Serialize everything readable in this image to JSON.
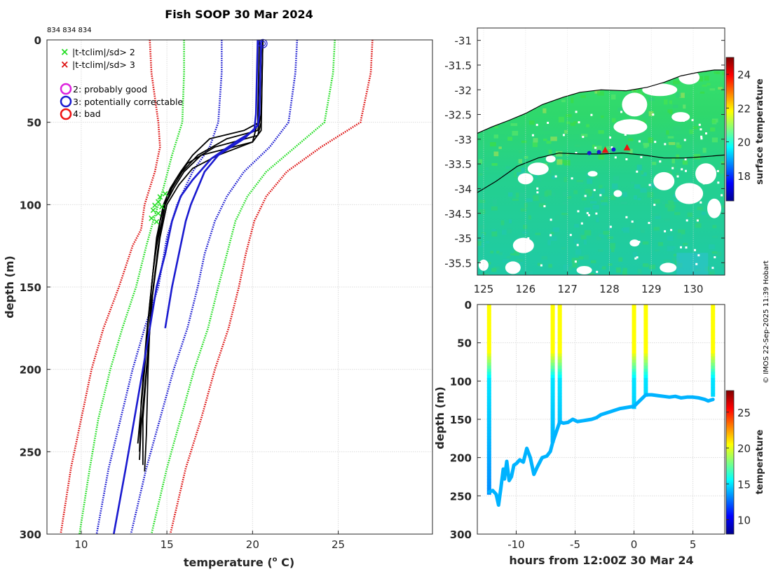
{
  "figure": {
    "id_label": "834 834 834",
    "credit": "© IMOS 22-Sep-2025 11:39 Hobart"
  },
  "colors": {
    "clim_sd2": "#22dd22",
    "clim_sd3": "#dd1111",
    "clim_sd1": "#1a1ad0",
    "profile": "#000000",
    "blue_profile": "#1a1ad0",
    "land": "#ffffff",
    "qc_probably_good": "#dd22dd",
    "qc_correctable": "#1a1ad0",
    "qc_bad": "#ee1111"
  },
  "chart_data": [
    {
      "type": "line",
      "name": "profile",
      "title": "Fish SOOP 30 Mar 2024",
      "xlabel": "temperature (o C)",
      "xlabel_parts": [
        "temperature (",
        "o",
        " C)"
      ],
      "ylabel": "depth (m)",
      "xlim": [
        8,
        30.5
      ],
      "ylim": [
        300,
        0
      ],
      "xticks": [
        10,
        15,
        20,
        25
      ],
      "yticks": [
        0,
        50,
        100,
        150,
        200,
        250,
        300
      ],
      "legend": {
        "markers": [
          {
            "symbol": "×",
            "label": "|t-tclim|/sd> 2",
            "color_key": "clim_sd2"
          },
          {
            "symbol": "×",
            "label": "|t-tclim|/sd> 3",
            "color_key": "clim_sd3"
          }
        ],
        "qc_flags": [
          {
            "label": "2: probably good",
            "color_key": "qc_probably_good"
          },
          {
            "label": "3: potentially correctable",
            "color_key": "qc_correctable"
          },
          {
            "label": "4: bad",
            "color_key": "qc_bad"
          }
        ]
      },
      "climatology_envelopes": [
        {
          "level": "-3sd",
          "color_key": "clim_sd3",
          "depth": [
            0,
            20,
            50,
            65,
            80,
            100,
            115,
            125,
            150,
            175,
            200,
            230,
            260,
            300
          ],
          "temp": [
            14.0,
            14.1,
            14.5,
            14.6,
            14.3,
            13.7,
            13.5,
            13.0,
            12.2,
            11.3,
            10.6,
            10.0,
            9.4,
            8.8
          ]
        },
        {
          "level": "-2sd",
          "color_key": "clim_sd2",
          "depth": [
            0,
            20,
            50,
            70,
            90,
            110,
            125,
            150,
            175,
            200,
            230,
            260,
            300
          ],
          "temp": [
            16.0,
            16.0,
            15.9,
            15.3,
            14.8,
            14.2,
            13.8,
            13.2,
            12.4,
            11.7,
            11.0,
            10.5,
            9.9
          ]
        },
        {
          "level": "-1sd",
          "color_key": "clim_sd1",
          "depth": [
            0,
            20,
            50,
            65,
            80,
            100,
            120,
            150,
            175,
            200,
            230,
            260,
            300
          ],
          "temp": [
            18.2,
            18.2,
            18.0,
            17.5,
            16.5,
            15.6,
            15.0,
            14.5,
            13.7,
            13.0,
            12.3,
            11.6,
            10.9
          ]
        },
        {
          "level": "+1sd",
          "color_key": "clim_sd1",
          "depth": [
            0,
            20,
            50,
            65,
            80,
            95,
            110,
            130,
            150,
            175,
            200,
            230,
            260,
            300
          ],
          "temp": [
            22.6,
            22.5,
            22.1,
            21.0,
            19.5,
            18.5,
            17.8,
            17.2,
            16.8,
            16.2,
            15.4,
            14.6,
            13.8,
            12.9
          ]
        },
        {
          "level": "+2sd",
          "color_key": "clim_sd2",
          "depth": [
            0,
            20,
            50,
            65,
            80,
            95,
            110,
            130,
            150,
            175,
            200,
            230,
            260,
            300
          ],
          "temp": [
            24.8,
            24.7,
            24.2,
            22.5,
            20.8,
            19.7,
            19.0,
            18.5,
            18.0,
            17.4,
            16.6,
            15.8,
            15.0,
            14.1
          ]
        },
        {
          "level": "+3sd",
          "color_key": "clim_sd3",
          "depth": [
            0,
            20,
            50,
            65,
            80,
            95,
            110,
            130,
            150,
            175,
            200,
            230,
            260,
            300
          ],
          "temp": [
            27.0,
            26.9,
            26.3,
            24.0,
            22.0,
            20.8,
            20.1,
            19.6,
            19.2,
            18.6,
            17.8,
            17.0,
            16.1,
            15.2
          ]
        }
      ],
      "profiles": [
        {
          "color_key": "profile",
          "depth": [
            0,
            40,
            50,
            55,
            60,
            70,
            80,
            90,
            100,
            120,
            150,
            200,
            240,
            262
          ],
          "temp": [
            20.5,
            20.4,
            20.4,
            19.5,
            17.5,
            16.5,
            15.8,
            15.2,
            14.8,
            14.4,
            14.1,
            13.9,
            13.8,
            13.7
          ]
        },
        {
          "color_key": "profile",
          "depth": [
            0,
            45,
            55,
            60,
            70,
            80,
            90,
            100,
            130,
            160,
            200,
            245
          ],
          "temp": [
            20.6,
            20.5,
            20.3,
            18.5,
            16.8,
            15.9,
            15.3,
            14.9,
            14.3,
            14.0,
            13.7,
            13.3
          ]
        },
        {
          "color_key": "profile",
          "depth": [
            0,
            50,
            58,
            65,
            75,
            85,
            95,
            110,
            140,
            180,
            220,
            250
          ],
          "temp": [
            20.6,
            20.5,
            20.3,
            17.8,
            16.2,
            15.5,
            15.0,
            14.6,
            14.2,
            13.8,
            13.5,
            13.4
          ]
        },
        {
          "color_key": "profile",
          "depth": [
            0,
            50,
            62,
            70,
            80,
            90,
            100,
            125,
            150,
            190,
            230,
            258
          ],
          "temp": [
            20.4,
            20.3,
            20.0,
            17.0,
            16.0,
            15.4,
            14.9,
            14.5,
            14.2,
            13.9,
            13.6,
            13.6
          ]
        },
        {
          "color_key": "profile",
          "depth": [
            0,
            55,
            62,
            70,
            78,
            88,
            100,
            120,
            160,
            200,
            235,
            255
          ],
          "temp": [
            20.6,
            20.5,
            20.0,
            18.0,
            16.5,
            15.7,
            15.0,
            14.6,
            14.1,
            13.8,
            13.5,
            13.4
          ]
        },
        {
          "color_key": "blue_profile",
          "depth": [
            0,
            45,
            52,
            60,
            70,
            80,
            90,
            100,
            110,
            130,
            150,
            175
          ],
          "temp": [
            20.5,
            20.4,
            20.3,
            19.5,
            18.0,
            17.2,
            16.8,
            16.4,
            16.1,
            15.7,
            15.3,
            14.9
          ]
        },
        {
          "color_key": "blue_profile",
          "depth": [
            0,
            45,
            55,
            62,
            72,
            85,
            95,
            110,
            130,
            150,
            175,
            200,
            230,
            260,
            300
          ],
          "temp": [
            20.3,
            20.2,
            20.1,
            19.0,
            17.6,
            16.5,
            15.8,
            15.3,
            14.9,
            14.4,
            14.0,
            13.6,
            13.1,
            12.6,
            11.9
          ]
        }
      ],
      "outlier_markers": [
        {
          "temp": 14.6,
          "depth": 95
        },
        {
          "temp": 14.9,
          "depth": 93
        },
        {
          "temp": 14.5,
          "depth": 98
        },
        {
          "temp": 14.3,
          "depth": 100
        },
        {
          "temp": 14.7,
          "depth": 101
        },
        {
          "temp": 14.2,
          "depth": 103
        },
        {
          "temp": 14.5,
          "depth": 105
        },
        {
          "temp": 14.1,
          "depth": 108
        },
        {
          "temp": 14.4,
          "depth": 110
        }
      ],
      "surface_circles": [
        {
          "temp": 20.6,
          "depth": 1
        }
      ]
    },
    {
      "type": "heatmap",
      "name": "map",
      "xlim": [
        124.85,
        130.75
      ],
      "ylim": [
        -35.75,
        -30.75
      ],
      "xticks": [
        125,
        126,
        127,
        128,
        129,
        130
      ],
      "yticks": [
        -31,
        -31.5,
        -32,
        -32.5,
        -33,
        -33.5,
        -34,
        -34.5,
        -35,
        -35.5
      ],
      "colorbar": {
        "label": "surface temperature",
        "range": [
          16.5,
          25
        ],
        "ticks": [
          18,
          20,
          22,
          24
        ]
      },
      "coastline": {
        "lon": [
          124.85,
          125.2,
          125.6,
          126.0,
          126.4,
          126.9,
          127.3,
          127.8,
          128.4,
          128.9,
          129.3,
          129.7,
          130.1,
          130.5,
          130.75
        ],
        "lat": [
          -32.88,
          -32.75,
          -32.62,
          -32.48,
          -32.3,
          -32.15,
          -32.05,
          -32.0,
          -32.02,
          -31.95,
          -31.85,
          -31.72,
          -31.65,
          -31.6,
          -31.6
        ]
      },
      "track": {
        "lon": [
          124.85,
          125.3,
          125.8,
          126.3,
          126.8,
          127.3,
          127.8,
          128.3,
          128.8,
          129.3,
          129.8,
          130.3,
          130.75
        ],
        "lat": [
          -34.08,
          -33.85,
          -33.55,
          -33.38,
          -33.28,
          -33.3,
          -33.3,
          -33.28,
          -33.32,
          -33.38,
          -33.38,
          -33.35,
          -33.32
        ]
      },
      "stations": [
        {
          "lon": 127.52,
          "lat": -33.28,
          "color_key": "qc_correctable"
        },
        {
          "lon": 127.75,
          "lat": -33.26,
          "color_key": "qc_correctable"
        },
        {
          "lon": 127.9,
          "lat": -33.22,
          "color_key": "qc_bad"
        },
        {
          "lon": 128.1,
          "lat": -33.21,
          "color_key": "qc_correctable"
        },
        {
          "lon": 128.42,
          "lat": -33.17,
          "color_key": "qc_bad"
        }
      ]
    },
    {
      "type": "scatter",
      "name": "timeseries",
      "xlabel": "hours from 12:00Z 30 Mar 24",
      "ylabel": "depth (m)",
      "xlim": [
        -13.3,
        7.7
      ],
      "ylim": [
        300,
        0
      ],
      "xticks": [
        -10,
        -5,
        0,
        5
      ],
      "yticks": [
        0,
        50,
        100,
        150,
        200,
        250,
        300
      ],
      "colorbar": {
        "label": "temperature",
        "range": [
          8,
          28
        ],
        "ticks": [
          10,
          15,
          20,
          25
        ]
      },
      "casts": [
        {
          "hour": -12.3,
          "bottom_depth": 245
        },
        {
          "hour": -6.9,
          "bottom_depth": 178
        },
        {
          "hour": -6.3,
          "bottom_depth": 153
        },
        {
          "hour": 0.0,
          "bottom_depth": 133
        },
        {
          "hour": 1.0,
          "bottom_depth": 118
        },
        {
          "hour": 6.7,
          "bottom_depth": 120
        }
      ],
      "bottom_trace": {
        "hour": [
          -12.3,
          -12.0,
          -11.7,
          -11.5,
          -11.3,
          -11.1,
          -11.0,
          -10.8,
          -10.6,
          -10.4,
          -10.2,
          -10.0,
          -9.7,
          -9.4,
          -9.1,
          -8.8,
          -8.5,
          -8.2,
          -7.8,
          -7.4,
          -7.1,
          -6.9,
          -6.3,
          -6.0,
          -5.6,
          -5.2,
          -4.8,
          -4.4,
          -4.0,
          -3.6,
          -3.2,
          -2.8,
          -2.4,
          -2.0,
          -1.6,
          -1.2,
          -0.8,
          -0.4,
          0.0,
          1.0,
          1.5,
          2.0,
          2.5,
          3.0,
          3.5,
          4.0,
          4.5,
          5.0,
          5.5,
          6.0,
          6.3,
          6.7
        ],
        "depth": [
          245,
          243,
          248,
          262,
          240,
          215,
          228,
          205,
          230,
          225,
          210,
          208,
          203,
          206,
          188,
          200,
          222,
          212,
          200,
          198,
          192,
          180,
          153,
          155,
          154,
          150,
          153,
          152,
          151,
          150,
          148,
          144,
          142,
          140,
          138,
          136,
          135,
          134,
          133,
          118,
          118,
          119,
          120,
          121,
          120,
          122,
          121,
          121,
          122,
          124,
          126,
          124
        ]
      }
    }
  ]
}
